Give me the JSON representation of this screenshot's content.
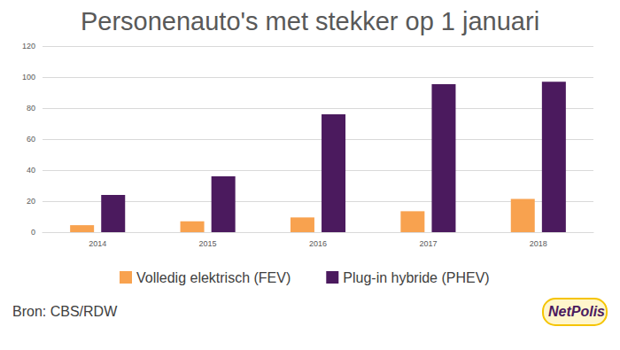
{
  "chart_data": {
    "type": "bar",
    "title": "Personenauto's met stekker op 1 januari",
    "categories": [
      "2014",
      "2015",
      "2016",
      "2017",
      "2018"
    ],
    "series": [
      {
        "name": "Volledig elektrisch (FEV)",
        "color": "#f8a24f",
        "values": [
          4.5,
          7,
          9.5,
          13.5,
          21.5
        ]
      },
      {
        "name": "Plug-in hybride (PHEV)",
        "color": "#4b1a5e",
        "values": [
          24,
          36,
          76,
          95.5,
          97
        ]
      }
    ],
    "ylim": [
      0,
      120
    ],
    "yticks": [
      0,
      20,
      40,
      60,
      80,
      100,
      120
    ],
    "grid": true,
    "legend": "bottom",
    "annotations": [
      "Bron: CBS/RDW",
      "NetPolis"
    ]
  }
}
